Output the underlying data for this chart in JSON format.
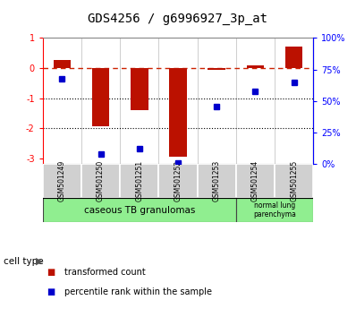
{
  "title": "GDS4256 / g6996927_3p_at",
  "samples": [
    "GSM501249",
    "GSM501250",
    "GSM501251",
    "GSM501252",
    "GSM501253",
    "GSM501254",
    "GSM501255"
  ],
  "red_values": [
    0.28,
    -1.95,
    -1.4,
    -2.95,
    -0.05,
    0.08,
    0.72
  ],
  "blue_values_pct": [
    68,
    8,
    12,
    1,
    46,
    58,
    65
  ],
  "ylim_left": [
    -3.2,
    1.0
  ],
  "ylim_right": [
    0,
    100
  ],
  "left_yticks": [
    -3,
    -2,
    -1,
    0,
    1
  ],
  "right_yticks": [
    0,
    25,
    50,
    75,
    100
  ],
  "right_yticklabels": [
    "0%",
    "25%",
    "50%",
    "75%",
    "100%"
  ],
  "legend_red_label": "transformed count",
  "legend_blue_label": "percentile rank within the sample",
  "bar_color": "#bb1100",
  "dot_color": "#0000cc",
  "group1_label": "caseous TB granulomas",
  "group1_samples": 5,
  "group2_label": "normal lung\nparenchyma",
  "group2_samples": 2,
  "group_color": "#90ee90",
  "sample_box_color": "#d0d0d0",
  "hline_dash_color": "#cc2200",
  "hline_dot_color": "#000000"
}
